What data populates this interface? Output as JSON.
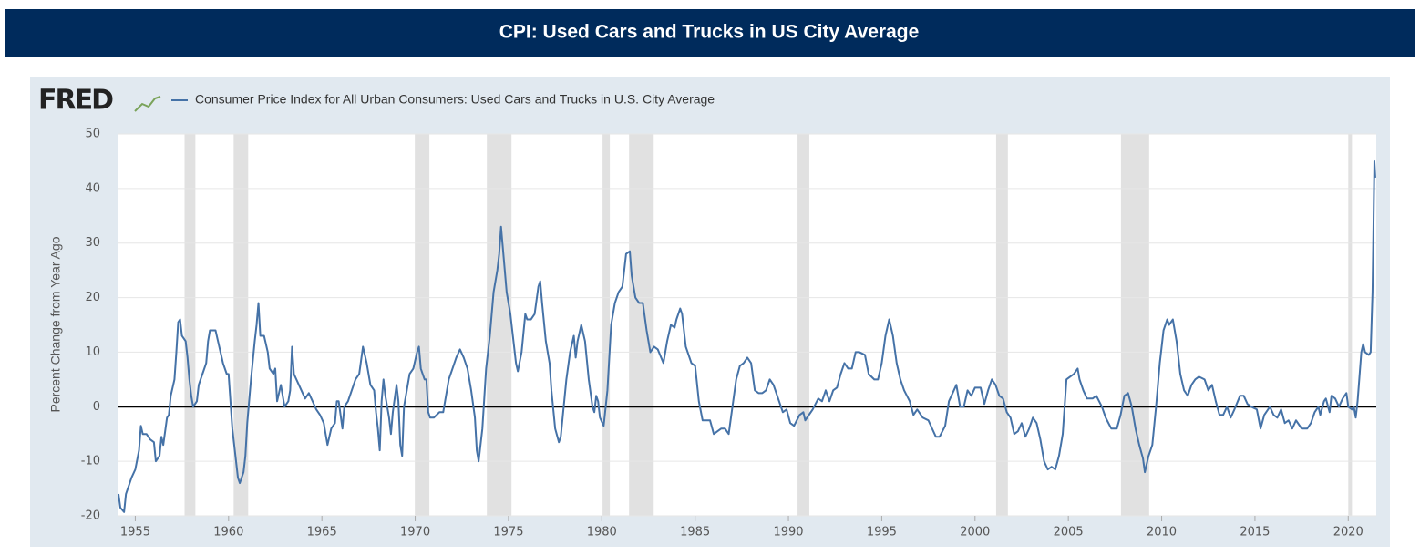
{
  "logo": "FRED",
  "chart_data": {
    "type": "line",
    "title": "CPI: Used Cars and Trucks in US City Average",
    "y_label": "Percent Change from Year Ago",
    "xlim": [
      1954.1,
      2021.5
    ],
    "xticks": [
      1955,
      1960,
      1965,
      1970,
      1975,
      1980,
      1985,
      1990,
      1995,
      2000,
      2005,
      2010,
      2015,
      2020
    ],
    "ylim": [
      -20,
      50
    ],
    "yticks": [
      -20,
      -10,
      0,
      10,
      20,
      30,
      40,
      50
    ],
    "grid": true,
    "recessions": [
      [
        1957.64,
        1958.22
      ],
      [
        1960.27,
        1961.05
      ],
      [
        1969.98,
        1970.76
      ],
      [
        1973.84,
        1975.16
      ],
      [
        1980.04,
        1980.43
      ],
      [
        1981.46,
        1982.78
      ],
      [
        1990.49,
        1991.12
      ],
      [
        2001.13,
        2001.76
      ],
      [
        2007.82,
        2009.33
      ],
      [
        2020.0,
        2020.2
      ]
    ],
    "x": [
      1954.1,
      1954.2,
      1954.4,
      1954.5,
      1954.8,
      1955.0,
      1955.2,
      1955.3,
      1955.4,
      1955.6,
      1955.8,
      1956.0,
      1956.1,
      1956.3,
      1956.4,
      1956.5,
      1956.7,
      1956.8,
      1956.9,
      1957.1,
      1957.2,
      1957.3,
      1957.4,
      1957.5,
      1957.7,
      1957.8,
      1957.9,
      1958.0,
      1958.1,
      1958.3,
      1958.4,
      1958.6,
      1958.8,
      1958.9,
      1959.0,
      1959.2,
      1959.3,
      1959.5,
      1959.7,
      1959.9,
      1960.0,
      1960.2,
      1960.4,
      1960.5,
      1960.6,
      1960.8,
      1960.9,
      1961.0,
      1961.2,
      1961.4,
      1961.5,
      1961.6,
      1961.7,
      1961.9,
      1962.1,
      1962.2,
      1962.4,
      1962.5,
      1962.6,
      1962.8,
      1963.0,
      1963.2,
      1963.3,
      1963.4,
      1963.5,
      1963.7,
      1963.9,
      1964.1,
      1964.3,
      1964.5,
      1964.7,
      1964.9,
      1965.1,
      1965.3,
      1965.5,
      1965.7,
      1965.8,
      1965.9,
      1966.1,
      1966.2,
      1966.4,
      1966.6,
      1966.8,
      1967.0,
      1967.2,
      1967.4,
      1967.6,
      1967.8,
      1967.9,
      1968.0,
      1968.1,
      1968.2,
      1968.3,
      1968.4,
      1968.6,
      1968.7,
      1968.8,
      1969.0,
      1969.1,
      1969.2,
      1969.3,
      1969.4,
      1969.6,
      1969.7,
      1969.9,
      1970.1,
      1970.2,
      1970.3,
      1970.5,
      1970.6,
      1970.7,
      1970.8,
      1971.0,
      1971.3,
      1971.5,
      1971.8,
      1972.0,
      1972.2,
      1972.4,
      1972.6,
      1972.8,
      1973.0,
      1973.2,
      1973.3,
      1973.4,
      1973.6,
      1973.8,
      1974.0,
      1974.2,
      1974.4,
      1974.5,
      1974.6,
      1974.8,
      1974.9,
      1975.1,
      1975.3,
      1975.4,
      1975.5,
      1975.7,
      1975.9,
      1976.0,
      1976.2,
      1976.4,
      1976.6,
      1976.7,
      1976.8,
      1977.0,
      1977.2,
      1977.3,
      1977.5,
      1977.7,
      1977.8,
      1978.1,
      1978.3,
      1978.5,
      1978.6,
      1978.7,
      1978.9,
      1979.1,
      1979.3,
      1979.5,
      1979.6,
      1979.7,
      1979.8,
      1979.9,
      1980.1,
      1980.3,
      1980.5,
      1980.7,
      1980.9,
      1981.1,
      1981.3,
      1981.5,
      1981.6,
      1981.8,
      1982.0,
      1982.2,
      1982.4,
      1982.6,
      1982.8,
      1983.0,
      1983.3,
      1983.5,
      1983.7,
      1983.9,
      1984.0,
      1984.2,
      1984.3,
      1984.5,
      1984.8,
      1985.0,
      1985.2,
      1985.4,
      1985.6,
      1985.8,
      1986.0,
      1986.2,
      1986.4,
      1986.6,
      1986.8,
      1987.0,
      1987.2,
      1987.4,
      1987.6,
      1987.8,
      1988.0,
      1988.2,
      1988.4,
      1988.6,
      1988.8,
      1989.0,
      1989.2,
      1989.5,
      1989.7,
      1989.9,
      1990.1,
      1990.3,
      1990.6,
      1990.8,
      1990.9,
      1991.3,
      1991.6,
      1991.8,
      1992.0,
      1992.2,
      1992.4,
      1992.6,
      1992.8,
      1993.0,
      1993.2,
      1993.4,
      1993.6,
      1993.8,
      1994.1,
      1994.3,
      1994.6,
      1994.8,
      1995.0,
      1995.2,
      1995.4,
      1995.6,
      1995.8,
      1996.0,
      1996.2,
      1996.5,
      1996.7,
      1996.9,
      1997.2,
      1997.5,
      1997.7,
      1997.9,
      1998.1,
      1998.4,
      1998.6,
      1998.8,
      1999.0,
      1999.2,
      1999.4,
      1999.6,
      1999.8,
      2000.0,
      2000.3,
      2000.5,
      2000.7,
      2000.9,
      2001.1,
      2001.3,
      2001.5,
      2001.7,
      2001.9,
      2002.1,
      2002.3,
      2002.5,
      2002.7,
      2002.9,
      2003.1,
      2003.3,
      2003.5,
      2003.7,
      2003.9,
      2004.1,
      2004.3,
      2004.5,
      2004.7,
      2004.8,
      2004.9,
      2005.1,
      2005.3,
      2005.5,
      2005.6,
      2005.8,
      2006.0,
      2006.3,
      2006.5,
      2006.8,
      2007.0,
      2007.3,
      2007.6,
      2007.8,
      2008.0,
      2008.2,
      2008.4,
      2008.6,
      2008.8,
      2009.0,
      2009.1,
      2009.3,
      2009.5,
      2009.7,
      2009.9,
      2010.1,
      2010.3,
      2010.4,
      2010.6,
      2010.8,
      2011.0,
      2011.2,
      2011.4,
      2011.6,
      2011.8,
      2012.0,
      2012.3,
      2012.5,
      2012.7,
      2012.9,
      2013.1,
      2013.3,
      2013.5,
      2013.7,
      2013.9,
      2014.2,
      2014.4,
      2014.6,
      2014.8,
      2015.1,
      2015.3,
      2015.5,
      2015.8,
      2016.0,
      2016.2,
      2016.4,
      2016.6,
      2016.8,
      2017.0,
      2017.2,
      2017.5,
      2017.8,
      2018.0,
      2018.2,
      2018.4,
      2018.5,
      2018.7,
      2018.8,
      2019.0,
      2019.1,
      2019.3,
      2019.5,
      2019.7,
      2019.9,
      2020.0,
      2020.2,
      2020.3,
      2020.4,
      2020.5,
      2020.7,
      2020.8,
      2020.9,
      2021.1,
      2021.2,
      2021.3,
      2021.4,
      2021.45
    ],
    "series": [
      {
        "name": "Consumer Price Index for All Urban Consumers: Used Cars and Trucks in U.S. City Average",
        "color": "#4572a7",
        "values": [
          -16,
          -18.5,
          -19.3,
          -16,
          -13,
          -11.5,
          -8,
          -3.5,
          -5,
          -5,
          -6,
          -6.5,
          -10,
          -9,
          -5.5,
          -7,
          -2,
          -1.5,
          2,
          5,
          10,
          15.5,
          16,
          13,
          12,
          9,
          5,
          2,
          0,
          1,
          4,
          6,
          8,
          12,
          14,
          14,
          14,
          11,
          8,
          6,
          6,
          -4,
          -10,
          -13,
          -14,
          -12,
          -9,
          -3,
          5,
          12,
          15,
          19,
          13,
          13,
          10,
          7,
          6,
          7,
          1,
          4,
          0,
          1,
          3,
          11,
          6,
          4.5,
          3,
          1.5,
          2.5,
          1,
          -0.5,
          -1.5,
          -3,
          -7,
          -4,
          -3,
          1,
          1,
          -4,
          0,
          1,
          3,
          5,
          6,
          11,
          8,
          4,
          3,
          -1,
          -4,
          -8,
          1,
          5,
          2,
          -2,
          -5,
          -1,
          4,
          1,
          -7,
          -9,
          0,
          4,
          6,
          7,
          10,
          11,
          7,
          5,
          5,
          -1,
          -2,
          -2,
          -1,
          -1,
          5,
          7,
          9,
          10.5,
          9,
          7,
          3,
          -2,
          -8,
          -10,
          -4,
          7,
          13,
          21,
          25,
          28,
          33,
          25,
          21,
          17,
          11,
          8,
          6.5,
          10,
          17,
          16,
          16,
          17,
          22,
          23,
          19,
          12,
          8,
          3,
          -4,
          -6.5,
          -5.5,
          5,
          10,
          13,
          9,
          12,
          15,
          12,
          5,
          0,
          -1,
          2,
          1,
          -2,
          -3.5,
          3,
          15,
          19,
          21,
          22,
          28,
          28.5,
          24,
          20,
          19,
          19,
          14,
          10,
          11,
          10.5,
          8,
          12,
          15,
          14.5,
          16,
          18,
          17,
          11,
          8,
          7.5,
          1,
          -2.5,
          -2.5,
          -2.5,
          -5,
          -4.5,
          -4,
          -4,
          -5,
          0,
          5,
          7.5,
          8,
          9,
          8,
          3,
          2.5,
          2.5,
          3,
          5,
          4,
          1,
          -1,
          -0.5,
          -3,
          -3.5,
          -1.5,
          -1,
          -2.5,
          -0.5,
          1.5,
          1,
          3,
          1,
          3,
          3.5,
          6,
          8,
          7,
          7,
          10,
          10,
          9.5,
          6,
          5,
          5,
          8,
          13,
          16,
          13,
          8,
          5,
          3,
          1,
          -1.5,
          -0.5,
          -2,
          -2.5,
          -4,
          -5.5,
          -5.5,
          -3.5,
          1,
          2.5,
          4,
          0,
          0,
          3,
          2,
          3.5,
          3.5,
          0.5,
          3,
          5,
          4,
          2,
          1.5,
          -1,
          -2,
          -5,
          -4.5,
          -3,
          -5.5,
          -4,
          -2,
          -3,
          -6,
          -10,
          -11.5,
          -11,
          -11.5,
          -9,
          -5,
          0,
          5,
          5.5,
          6,
          7,
          5,
          3,
          1.5,
          1.5,
          2,
          0,
          -2,
          -4,
          -4,
          -1.5,
          2,
          2.5,
          0,
          -4,
          -7,
          -9.5,
          -12,
          -9,
          -7,
          0,
          8,
          14,
          16,
          15,
          16,
          12,
          6,
          3,
          2,
          4,
          5,
          5.5,
          5,
          3,
          4,
          1,
          -1.5,
          -1.5,
          0,
          -2,
          -0.5,
          2,
          2,
          0.5,
          0,
          -0.5,
          -4,
          -1.5,
          0,
          -1.5,
          -2,
          -0.5,
          -3,
          -2.5,
          -4,
          -2.5,
          -4,
          -4,
          -3,
          -1,
          0,
          -1.5,
          1,
          1.5,
          -1,
          2,
          1.5,
          0,
          1.5,
          2.5,
          0,
          -0.5,
          0,
          -2,
          1,
          10,
          11.5,
          10,
          9.5,
          10,
          21,
          45,
          42
        ]
      }
    ]
  }
}
